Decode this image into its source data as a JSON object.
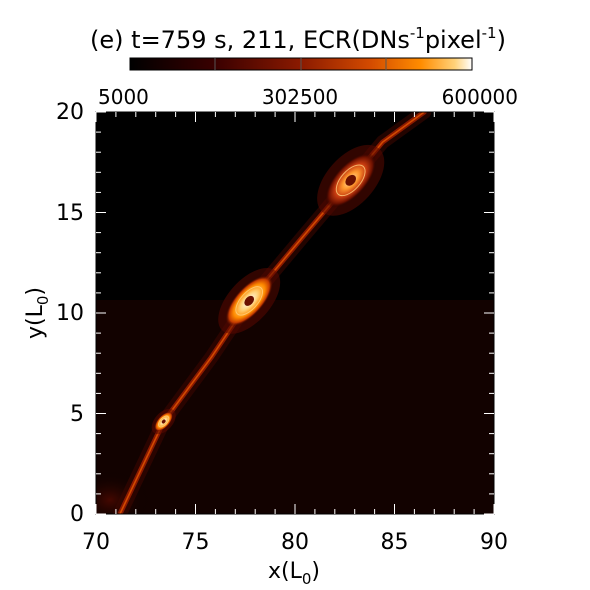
{
  "chart_data": {
    "type": "heatmap",
    "panel_label": "(e)",
    "title_prefix": "(e) t=759 s, 211, ECR(DNs",
    "title_sup1": "-1",
    "title_mid": "pixel",
    "title_sup2": "-1",
    "title_suffix": ")",
    "xlabel_main": "x(L",
    "xlabel_sub": "0",
    "xlabel_end": ")",
    "ylabel_main": "y(L",
    "ylabel_sub": "0",
    "ylabel_end": ")",
    "xlim": [
      70,
      90
    ],
    "ylim": [
      0,
      20
    ],
    "x_ticks": [
      "70",
      "75",
      "80",
      "85",
      "90"
    ],
    "y_ticks": [
      "0",
      "5",
      "10",
      "15",
      "20"
    ],
    "colorbar": {
      "ticks": [
        "5000",
        "302500",
        "600000"
      ],
      "min": 5000,
      "max": 600000,
      "colormap": "heat"
    },
    "structures": [
      {
        "name": "plasmoid-upper",
        "x": 82.8,
        "y": 16.6,
        "brightness": 0.75
      },
      {
        "name": "plasmoid-middle",
        "x": 77.7,
        "y": 10.6,
        "brightness": 1.0
      },
      {
        "name": "plasmoid-lower",
        "x": 73.4,
        "y": 4.6,
        "brightness": 0.95
      }
    ],
    "current_sheet": [
      [
        71.2,
        0.0
      ],
      [
        73.4,
        4.6
      ],
      [
        75.8,
        7.8
      ],
      [
        77.7,
        10.6
      ],
      [
        80.4,
        13.8
      ],
      [
        82.8,
        16.6
      ],
      [
        84.4,
        18.5
      ],
      [
        86.5,
        20.0
      ]
    ]
  },
  "colors": {
    "background": "#000000",
    "heat_stops": [
      "#000000",
      "#3a0000",
      "#8b1a00",
      "#d24a00",
      "#ff8c00",
      "#ffd27a",
      "#ffffff"
    ]
  }
}
